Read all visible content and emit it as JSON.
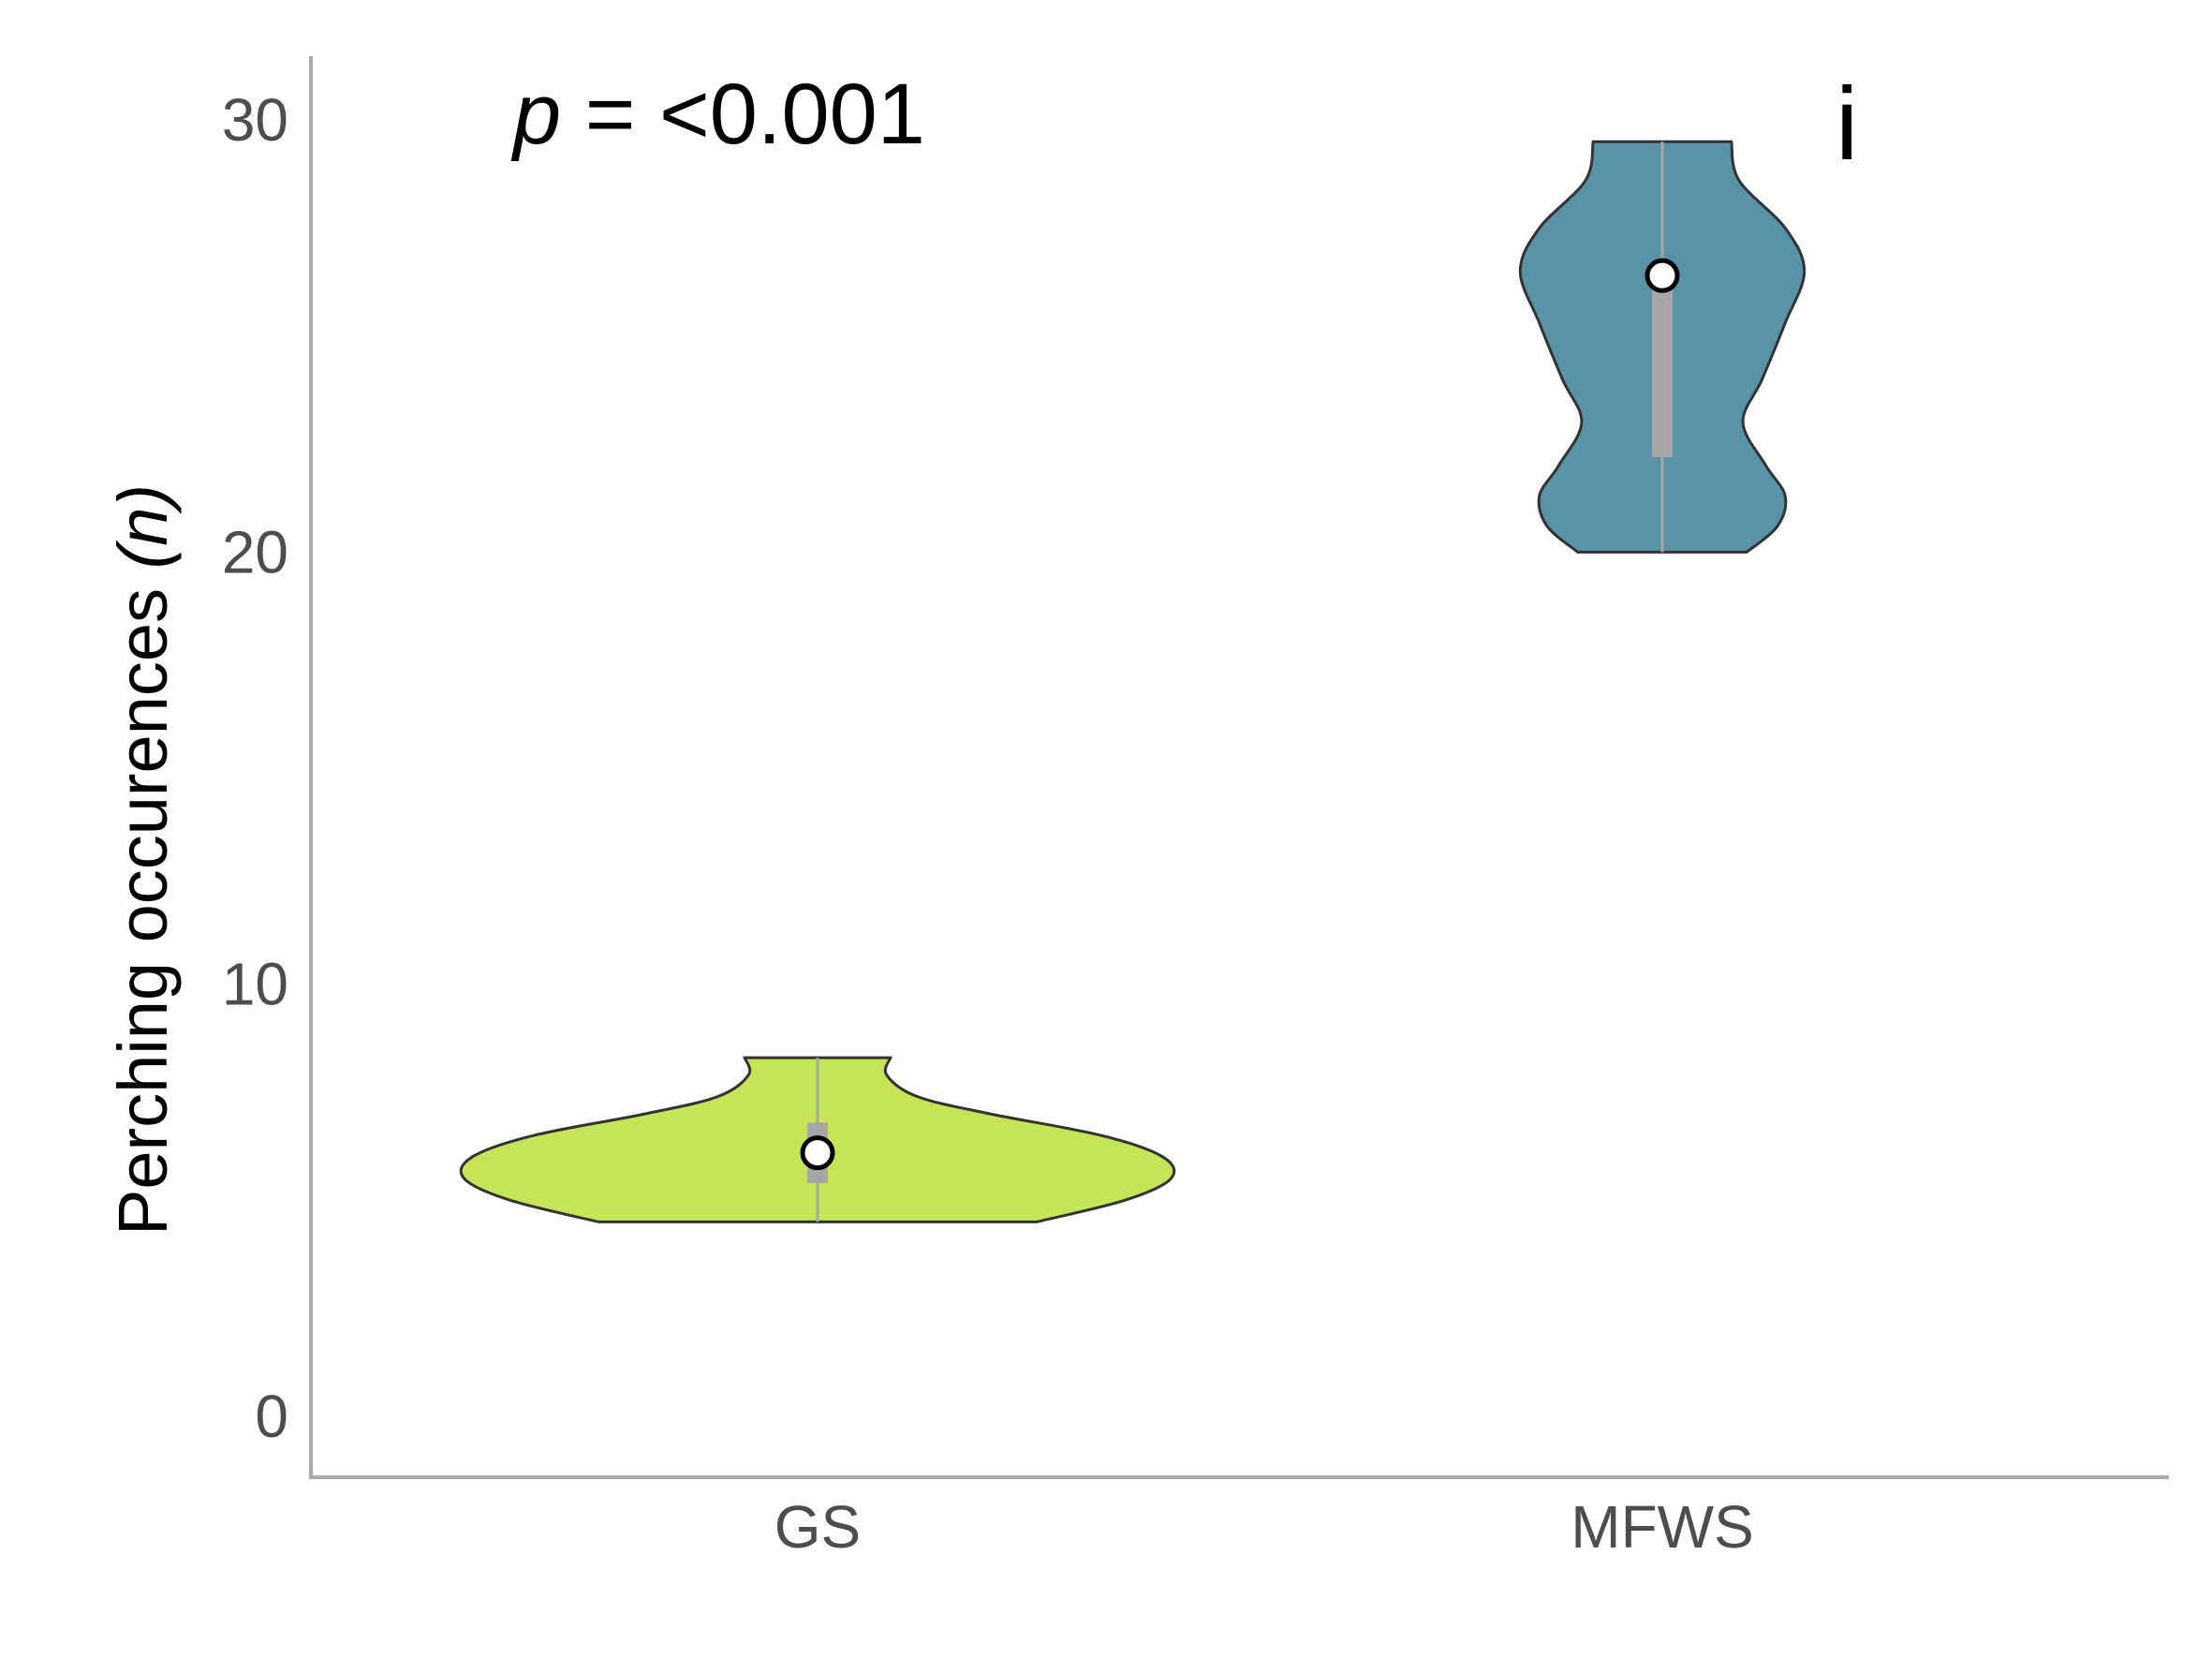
{
  "chart_data": {
    "type": "violin",
    "ylabel_text": "Perching occurences ",
    "ylabel_italic": "(n)",
    "xlabel": "",
    "ylim": [
      -1.3,
      31.5
    ],
    "yticks": [
      0,
      10,
      20,
      30
    ],
    "categories": [
      "GS",
      "MFWS"
    ],
    "annotation": {
      "p_symbol": "p",
      "p_value": " = <0.001"
    },
    "panel_label": "i",
    "colors": {
      "GS": "#c5e557",
      "MFWS": "#5893a7",
      "outline": "#333333",
      "box": "#a6a6a6",
      "axis": "#aaaaaa"
    },
    "violins": [
      {
        "category": "GS",
        "min": 4.5,
        "max": 8.3,
        "q1": 5.4,
        "q3": 6.8,
        "median": 6.1,
        "density": [
          [
            4.5,
            0.57
          ],
          [
            5.0,
            0.8
          ],
          [
            5.5,
            0.92
          ],
          [
            6.0,
            0.9
          ],
          [
            6.5,
            0.74
          ],
          [
            7.0,
            0.45
          ],
          [
            7.4,
            0.26
          ],
          [
            7.9,
            0.18
          ],
          [
            8.3,
            0.19
          ]
        ]
      },
      {
        "category": "MFWS",
        "min": 20.0,
        "max": 29.5,
        "q1": 22.2,
        "q3": 26.5,
        "median": 26.4,
        "density": [
          [
            20.0,
            0.22
          ],
          [
            20.6,
            0.3
          ],
          [
            21.3,
            0.32
          ],
          [
            22.0,
            0.27
          ],
          [
            23.0,
            0.21
          ],
          [
            24.0,
            0.26
          ],
          [
            25.3,
            0.32
          ],
          [
            26.5,
            0.37
          ],
          [
            27.5,
            0.32
          ],
          [
            28.6,
            0.2
          ],
          [
            29.5,
            0.18
          ]
        ]
      }
    ]
  }
}
